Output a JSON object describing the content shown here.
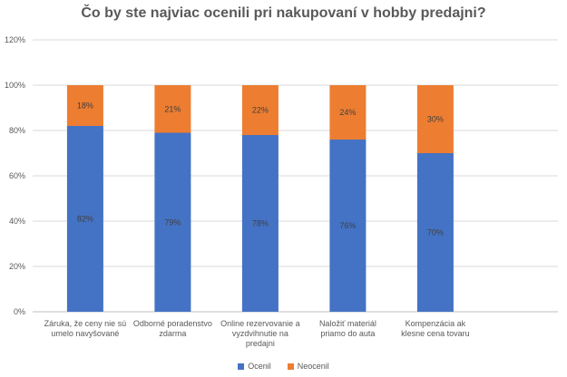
{
  "chart_data": {
    "type": "bar",
    "stacked": true,
    "title": "Čo by ste najviac ocenili pri nakupovaní v hobby predajni?",
    "xlabel": "",
    "ylabel": "",
    "ylim": [
      0,
      1.2
    ],
    "y_ticks": [
      "0%",
      "20%",
      "40%",
      "60%",
      "80%",
      "100%",
      "120%"
    ],
    "grid": true,
    "legend_position": "bottom",
    "categories": [
      [
        "Záruka, že ceny nie sú",
        "umelo navyšované"
      ],
      [
        "Odborné poradenstvo",
        "zdarma"
      ],
      [
        "Online rezervovanie a",
        "vyzdvihnutie na",
        "predajni"
      ],
      [
        "Naložiť materiál",
        "priamo do auta"
      ],
      [
        "Kompenzácia ak",
        "klesne cena tovaru"
      ]
    ],
    "series": [
      {
        "name": "Ocenil",
        "color": "#4472c4",
        "values": [
          0.82,
          0.79,
          0.78,
          0.76,
          0.7
        ],
        "labels": [
          "82%",
          "79%",
          "78%",
          "76%",
          "70%"
        ]
      },
      {
        "name": "Neocenil",
        "color": "#ed7d31",
        "values": [
          0.18,
          0.21,
          0.22,
          0.24,
          0.3
        ],
        "labels": [
          "18%",
          "21%",
          "22%",
          "24%",
          "30%"
        ]
      }
    ]
  }
}
